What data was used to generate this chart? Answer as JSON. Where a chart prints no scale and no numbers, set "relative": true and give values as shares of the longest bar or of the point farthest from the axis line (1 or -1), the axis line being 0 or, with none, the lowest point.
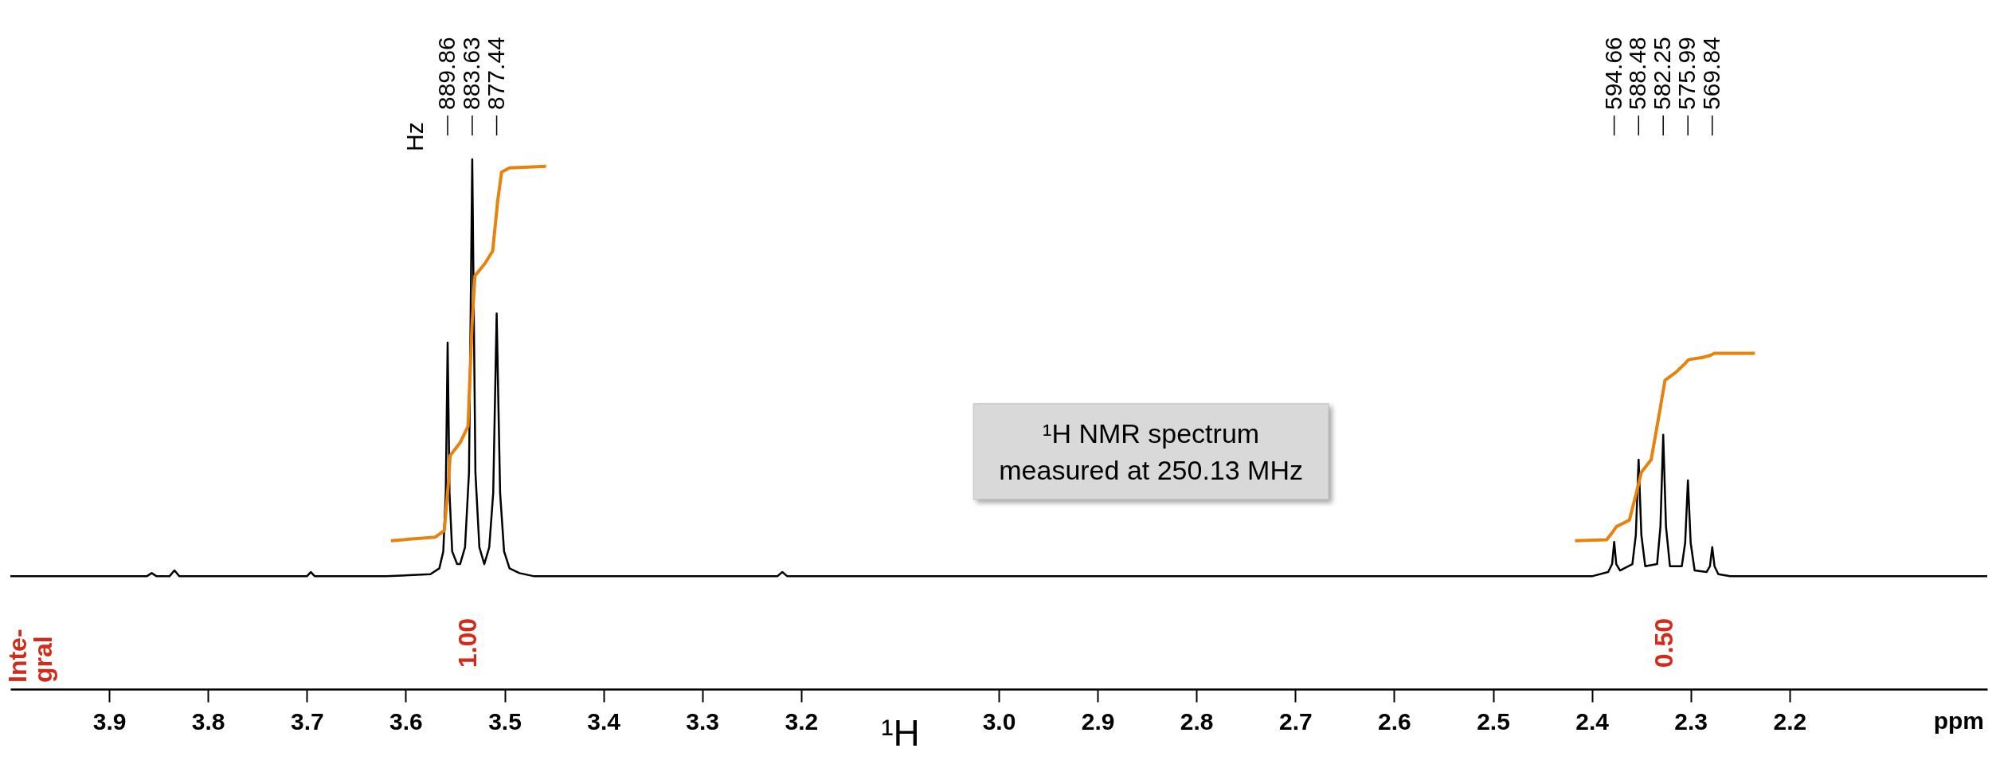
{
  "chart_data": {
    "type": "line",
    "relative": true,
    "xlabel": "¹H",
    "xlim": [
      4.0,
      2.0
    ],
    "xticks": [
      3.9,
      3.8,
      3.7,
      3.6,
      3.5,
      3.4,
      3.3,
      3.2,
      {
        "value": 3,
        "label": "3.0"
      },
      2.9,
      2.8,
      2.7,
      2.6,
      2.5,
      2.4,
      2.3,
      2.2
    ],
    "grid": false,
    "line_style": "solid",
    "marker": "none",
    "series": [
      {
        "color": "#000000",
        "x": [
          4.0,
          3.862,
          3.857,
          3.852,
          3.839,
          3.834,
          3.829,
          3.7,
          3.696,
          3.692,
          3.62,
          3.575,
          3.566,
          3.562,
          3.5595,
          3.5576,
          3.5557,
          3.553,
          3.548,
          3.545,
          3.54,
          3.536,
          3.5327,
          3.5295,
          3.5255,
          3.5205,
          3.5155,
          3.5115,
          3.508,
          3.5045,
          3.5005,
          3.495,
          3.485,
          3.47,
          3.224,
          3.219,
          3.214,
          2.4,
          2.3835,
          2.3795,
          2.3774,
          2.3753,
          2.3715,
          2.359,
          2.3555,
          2.3527,
          2.3499,
          2.346,
          2.334,
          2.3306,
          2.3278,
          2.325,
          2.321,
          2.309,
          2.3056,
          2.3028,
          2.3,
          2.296,
          2.284,
          2.2805,
          2.2782,
          2.2759,
          2.272,
          2.26,
          2.0
        ],
        "values": [
          0.213,
          0.213,
          0.219,
          0.213,
          0.213,
          0.224,
          0.213,
          0.213,
          0.221,
          0.213,
          0.213,
          0.217,
          0.228,
          0.26,
          0.37,
          0.654,
          0.37,
          0.26,
          0.236,
          0.236,
          0.268,
          0.409,
          1.0,
          0.409,
          0.268,
          0.236,
          0.268,
          0.37,
          0.709,
          0.37,
          0.26,
          0.228,
          0.219,
          0.213,
          0.213,
          0.221,
          0.213,
          0.213,
          0.221,
          0.236,
          0.278,
          0.236,
          0.224,
          0.236,
          0.291,
          0.433,
          0.291,
          0.232,
          0.236,
          0.307,
          0.48,
          0.307,
          0.232,
          0.232,
          0.276,
          0.394,
          0.276,
          0.224,
          0.221,
          0.232,
          0.268,
          0.232,
          0.217,
          0.213,
          0.213
        ]
      },
      {
        "color": "#e8820c",
        "x": [
          3.615,
          3.57,
          3.561,
          3.557,
          3.555,
          3.545,
          3.537,
          3.533,
          3.53,
          3.52,
          3.512,
          3.507,
          3.503,
          3.495,
          3.458
        ],
        "values": [
          0.28,
          0.287,
          0.299,
          0.386,
          0.441,
          0.465,
          0.496,
          0.685,
          0.78,
          0.803,
          0.827,
          0.921,
          0.976,
          0.984,
          0.987
        ]
      },
      {
        "color": "#e8820c",
        "x": [
          2.417,
          2.385,
          2.378,
          2.375,
          2.362,
          2.355,
          2.35,
          2.34,
          2.331,
          2.326,
          2.315,
          2.306,
          2.302,
          2.288,
          2.28,
          2.276,
          2.235
        ],
        "values": [
          0.28,
          0.282,
          0.299,
          0.307,
          0.319,
          0.37,
          0.409,
          0.433,
          0.528,
          0.583,
          0.598,
          0.614,
          0.622,
          0.626,
          0.63,
          0.634,
          0.634
        ]
      }
    ],
    "annotations": [
      "Hz",
      {
        "text": "889.86",
        "x": 3.5576
      },
      {
        "text": "883.63",
        "x": 3.5327
      },
      {
        "text": "877.44",
        "x": 3.508
      },
      {
        "text": "594.66",
        "x": 2.3774
      },
      {
        "text": "588.48",
        "x": 2.3527
      },
      {
        "text": "582.25",
        "x": 2.3278
      },
      {
        "text": "575.99",
        "x": 2.3028
      },
      {
        "text": "569.84",
        "x": 2.2782
      },
      "1.00",
      "0.50",
      "Inte-\ngral",
      "¹H NMR spectrum\nmeasured at 250.13 MHz",
      "ppm"
    ]
  }
}
